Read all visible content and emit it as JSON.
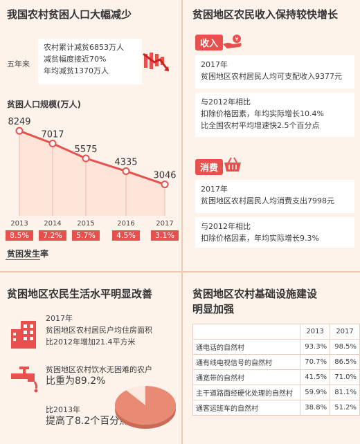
{
  "left_top": {
    "title": "我国农村贫困人口大幅减少",
    "five_years": "五年来",
    "lines": [
      "农村累计减贫6853万人",
      "减贫幅度接近70%",
      "年均减贫1370万人"
    ]
  },
  "chart_data": {
    "type": "line",
    "title": "贫困人口规模(万人)",
    "x": [
      "2013",
      "2014",
      "2015",
      "2016",
      "2017"
    ],
    "values": [
      8249,
      7017,
      5575,
      4335,
      3046
    ],
    "ylim": [
      0,
      9000
    ],
    "secondary_label": "贫困发生率",
    "rates": [
      "8.5%",
      "7.2%",
      "5.7%",
      "4.5%",
      "3.1%"
    ]
  },
  "right_top": {
    "title": "贫困地区农民收入保持较快增长",
    "income_tag": "收入",
    "income_box1": [
      "2017年",
      "贫困地区农村居民人均可支配收入9377元"
    ],
    "income_box2": [
      "与2012年相比",
      "扣除价格因素，年均实际增长10.4%",
      "比全国农村平均增速快2.5个百分点"
    ],
    "consume_tag": "消费",
    "consume_box1": [
      "2017年",
      "贫困地区农村居民人均消费支出7998元"
    ],
    "consume_box2": [
      "与2012年相比",
      "扣除价格因素，年均实际增长9.3%"
    ]
  },
  "left_bottom": {
    "title": "贫困地区农民生活水平明显改善",
    "house": [
      "2017年",
      "贫困地区农村居民户均住房面积",
      "比2012年增加21.4平方米"
    ],
    "water": [
      "贫困地区农村饮水无困难的农户",
      "比重为89.2%"
    ],
    "water_compare": [
      "比2013年",
      "提高了8.2个百分点"
    ],
    "water_share": 0.892
  },
  "right_bottom": {
    "title_line1": "贫困地区农村基础设施建设",
    "title_line2": "明显加强",
    "headers": [
      "",
      "2013",
      "2017"
    ],
    "rows": [
      [
        "通电话的自然村",
        "93.3%",
        "98.5%"
      ],
      [
        "通有线电视信号的自然村",
        "70.7%",
        "86.5%"
      ],
      [
        "通宽带的自然村",
        "41.5%",
        "71.0%"
      ],
      [
        "主干道路面经硬化处理的自然村",
        "59.9%",
        "81.1%"
      ],
      [
        "通客运班车的自然村",
        "38.8%",
        "51.2%"
      ]
    ]
  },
  "colors": {
    "accent": "#e8504d",
    "background": "#fdf3ea",
    "pie": "#e98a75"
  }
}
